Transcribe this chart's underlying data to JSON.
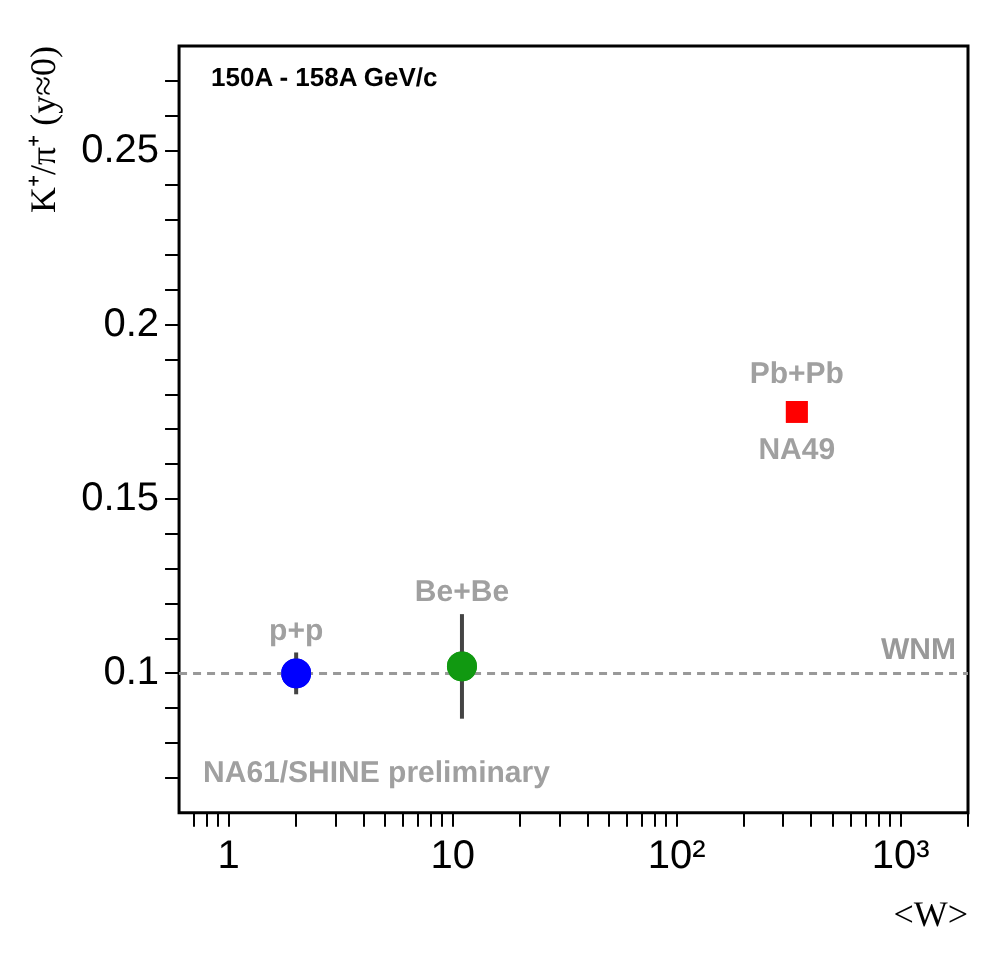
{
  "chart_data": {
    "type": "scatter",
    "title": "150A - 158A GeV/c",
    "xlabel": "<W>",
    "ylabel": "K⁺/π⁺ (y≈0)",
    "series": [
      {
        "name": "p+p",
        "color": "#0000ff",
        "marker": "circle",
        "x": [
          2
        ],
        "values": [
          0.1
        ],
        "errors": [
          0.006
        ]
      },
      {
        "name": "Be+Be",
        "color": "#119911",
        "marker": "circle",
        "x": [
          11
        ],
        "values": [
          0.102
        ],
        "errors": [
          0.015
        ]
      },
      {
        "name": "Pb+Pb",
        "color": "#ff0000",
        "marker": "square",
        "x": [
          344
        ],
        "values": [
          0.175
        ],
        "errors": [
          null
        ]
      }
    ],
    "log": "x",
    "xlim": [
      0.6,
      2000
    ],
    "ylim": [
      0.06,
      0.28
    ],
    "xticks": [
      {
        "value": 0.7,
        "label": null
      },
      {
        "value": 0.8,
        "label": null
      },
      {
        "value": 0.9,
        "label": null
      },
      1,
      {
        "value": 2,
        "label": null
      },
      {
        "value": 3,
        "label": null
      },
      {
        "value": 4,
        "label": null
      },
      {
        "value": 5,
        "label": null
      },
      {
        "value": 6,
        "label": null
      },
      {
        "value": 7,
        "label": null
      },
      {
        "value": 8,
        "label": null
      },
      {
        "value": 9,
        "label": null
      },
      10,
      {
        "value": 20,
        "label": null
      },
      {
        "value": 30,
        "label": null
      },
      {
        "value": 40,
        "label": null
      },
      {
        "value": 50,
        "label": null
      },
      {
        "value": 60,
        "label": null
      },
      {
        "value": 70,
        "label": null
      },
      {
        "value": 80,
        "label": null
      },
      {
        "value": 90,
        "label": null
      },
      {
        "value": 100,
        "label": "10²"
      },
      {
        "value": 200,
        "label": null
      },
      {
        "value": 300,
        "label": null
      },
      {
        "value": 400,
        "label": null
      },
      {
        "value": 500,
        "label": null
      },
      {
        "value": 600,
        "label": null
      },
      {
        "value": 700,
        "label": null
      },
      {
        "value": 800,
        "label": null
      },
      {
        "value": 900,
        "label": null
      },
      {
        "value": 1000,
        "label": "10³"
      },
      {
        "value": 2000,
        "label": null
      }
    ],
    "yticks": [
      {
        "value": 0.07,
        "label": null
      },
      {
        "value": 0.08,
        "label": null
      },
      {
        "value": 0.09,
        "label": null
      },
      0.1,
      {
        "value": 0.11,
        "label": null
      },
      {
        "value": 0.12,
        "label": null
      },
      {
        "value": 0.13,
        "label": null
      },
      {
        "value": 0.14,
        "label": null
      },
      0.15,
      {
        "value": 0.16,
        "label": null
      },
      {
        "value": 0.17,
        "label": null
      },
      {
        "value": 0.18,
        "label": null
      },
      {
        "value": 0.19,
        "label": null
      },
      0.2,
      {
        "value": 0.21,
        "label": null
      },
      {
        "value": 0.22,
        "label": null
      },
      {
        "value": 0.23,
        "label": null
      },
      {
        "value": 0.24,
        "label": null
      },
      0.25,
      {
        "value": 0.26,
        "label": null
      },
      {
        "value": 0.27,
        "label": null
      }
    ],
    "ref_lines": [
      {
        "axis": "y",
        "value": 0.1,
        "label": "WNM",
        "color": "#999999",
        "line_style": "dashed"
      }
    ],
    "annotations": [
      "NA49",
      "NA61/SHINE preliminary"
    ],
    "grid": false,
    "legend": false
  }
}
